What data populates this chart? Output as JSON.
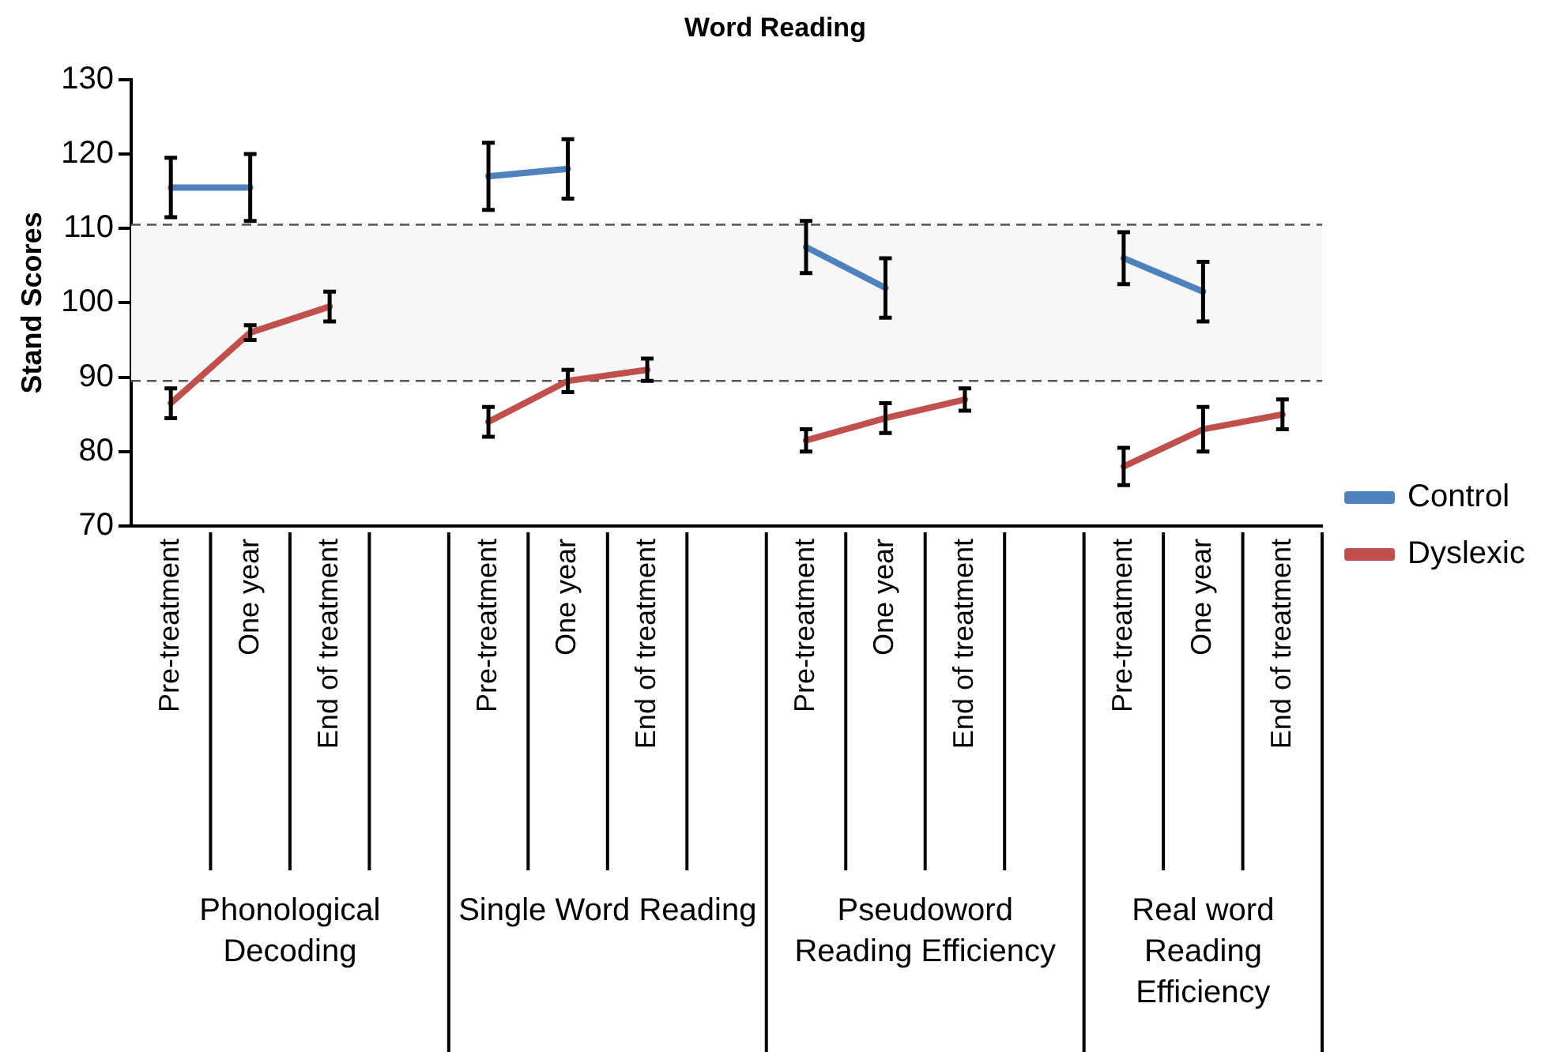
{
  "chart_data": {
    "type": "line",
    "title": "Word Reading",
    "ylabel": "Stand Scores",
    "categories": [
      "Pre-treatment",
      "One year",
      "End of treatment",
      null,
      "Pre-treatment",
      "One year",
      "End of treatment",
      null,
      "Pre-treatment",
      "One year",
      "End of treatment",
      null,
      "Pre-treatment",
      "One year",
      "End of treatment"
    ],
    "annotations": [
      "Phonological Decoding",
      "Single Word Reading",
      "Pseudoword Reading Efficiency",
      "Real word Reading Efficiency"
    ],
    "series": [
      {
        "name": "Control",
        "color": "#4f81bd",
        "values": [
          115.5,
          115.5,
          null,
          null,
          117,
          118,
          null,
          null,
          107.5,
          102,
          null,
          null,
          106,
          101.5,
          null
        ],
        "errors": [
          4,
          4.5,
          null,
          null,
          4.5,
          4,
          null,
          null,
          3.5,
          4,
          null,
          null,
          3.5,
          4,
          null
        ]
      },
      {
        "name": "Dyslexic",
        "color": "#c0504d",
        "values": [
          86.5,
          96,
          99.5,
          null,
          84,
          89.5,
          91,
          null,
          81.5,
          84.5,
          87,
          null,
          78,
          83,
          85
        ],
        "errors": [
          2,
          1,
          2,
          null,
          2,
          1.5,
          1.5,
          null,
          1.5,
          2,
          1.5,
          null,
          2.5,
          3,
          2
        ]
      }
    ],
    "bands": [
      {
        "axis": "y",
        "from": 89.5,
        "to": 110.5,
        "color": "#f7f7f7"
      }
    ],
    "ref_lines": [
      {
        "axis": "y",
        "value": 89.5,
        "color": "#555555",
        "line_style": "dashed"
      },
      {
        "axis": "y",
        "value": 110.5,
        "color": "#555555",
        "line_style": "dashed"
      }
    ],
    "ylim": [
      70,
      130
    ],
    "yticks": [
      70,
      80,
      90,
      100,
      110,
      120,
      130
    ],
    "grid": false,
    "legend": "right",
    "marker": "none",
    "line_style": "solid"
  }
}
